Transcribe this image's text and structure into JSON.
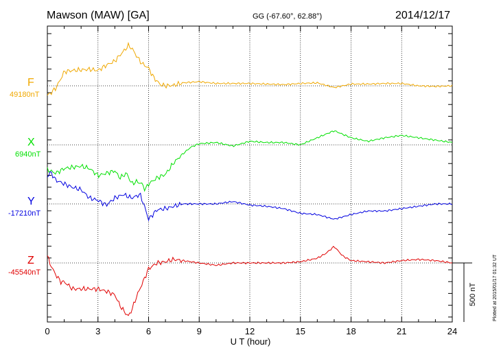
{
  "header": {
    "station": "Mawson (MAW)  [GA]",
    "coords": "GG (-67.60°,  62.88°)",
    "date": "2014/12/17"
  },
  "plotted_note": "Plotted at 2015/01/17 01:32 UT",
  "scale_label": "500 nT",
  "colors": {
    "F": "#f0a800",
    "X": "#00e000",
    "Y": "#0000e0",
    "Z": "#e00000"
  },
  "chart_data": {
    "type": "line",
    "title": "Mawson (MAW)  [GA]",
    "xlabel": "U T (hour)",
    "ylabel": "",
    "xlim": [
      0,
      24
    ],
    "x_ticks": [
      "0",
      "3",
      "6",
      "9",
      "12",
      "15",
      "18",
      "21",
      "24"
    ],
    "scale_bar_nT": 500,
    "series": [
      {
        "name": "F",
        "baseline": "49180nT",
        "x": [
          0,
          0.2,
          0.5,
          0.8,
          1.0,
          1.5,
          2.0,
          2.5,
          3.0,
          3.5,
          4.0,
          4.3,
          4.5,
          4.8,
          5.0,
          5.3,
          5.6,
          6.0,
          6.3,
          6.7,
          7.0,
          7.5,
          8,
          9,
          10,
          11,
          12,
          13,
          14,
          15,
          16,
          17,
          18,
          19,
          20,
          21,
          22,
          23,
          24
        ],
        "values": [
          -80,
          -60,
          -20,
          60,
          120,
          130,
          135,
          140,
          130,
          175,
          210,
          260,
          290,
          340,
          320,
          250,
          190,
          150,
          70,
          10,
          0,
          5,
          25,
          35,
          20,
          20,
          20,
          15,
          10,
          20,
          25,
          -15,
          15,
          15,
          20,
          20,
          0,
          -5,
          0
        ]
      },
      {
        "name": "X",
        "baseline": "6940nT",
        "x": [
          0,
          0.5,
          1,
          1.5,
          2,
          2.5,
          3,
          3.5,
          4,
          4.3,
          4.7,
          5,
          5.3,
          5.6,
          5.8,
          6,
          6.5,
          7,
          7.5,
          8,
          8.5,
          9,
          10,
          11,
          12,
          13,
          14,
          15,
          16,
          17,
          18,
          19,
          20,
          21,
          22,
          23,
          24
        ],
        "values": [
          -210,
          -240,
          -200,
          -190,
          -180,
          -200,
          -260,
          -240,
          -220,
          -280,
          -240,
          -330,
          -310,
          -330,
          -380,
          -330,
          -280,
          -250,
          -150,
          -80,
          -20,
          10,
          20,
          -10,
          30,
          20,
          20,
          0,
          60,
          120,
          60,
          30,
          60,
          80,
          60,
          40,
          20
        ]
      },
      {
        "name": "Y",
        "baseline": "-17210nT",
        "x": [
          0,
          0.2,
          0.5,
          1,
          1.5,
          2,
          2.5,
          3,
          3.5,
          4,
          4.5,
          5,
          5.5,
          5.8,
          6,
          6.5,
          7,
          7.5,
          8,
          9,
          10,
          11,
          12,
          13,
          14,
          15,
          16,
          17,
          18,
          19,
          20,
          21,
          22,
          23,
          24
        ],
        "values": [
          230,
          270,
          200,
          170,
          140,
          120,
          50,
          30,
          -10,
          50,
          80,
          50,
          80,
          -40,
          -130,
          -50,
          -40,
          -20,
          0,
          0,
          0,
          20,
          -10,
          -20,
          -40,
          -80,
          -90,
          -130,
          -90,
          -60,
          -60,
          -40,
          -20,
          0,
          0
        ]
      },
      {
        "name": "Z",
        "baseline": "-45540nT",
        "x": [
          0,
          0.2,
          0.5,
          0.8,
          1,
          1.5,
          2,
          2.5,
          3,
          3.5,
          4,
          4.3,
          4.6,
          4.8,
          5,
          5.3,
          5.7,
          6,
          6.5,
          7,
          7.5,
          8,
          9,
          10,
          11,
          12,
          13,
          14,
          15,
          16,
          16.5,
          17,
          17.5,
          18,
          19,
          20,
          21,
          22,
          23,
          24
        ],
        "values": [
          60,
          -20,
          -100,
          -160,
          -160,
          -220,
          -220,
          -220,
          -220,
          -240,
          -270,
          -360,
          -420,
          -450,
          -400,
          -280,
          -150,
          -50,
          0,
          10,
          30,
          20,
          0,
          -20,
          0,
          0,
          0,
          0,
          10,
          40,
          80,
          140,
          60,
          20,
          10,
          0,
          20,
          30,
          20,
          0
        ]
      }
    ]
  }
}
